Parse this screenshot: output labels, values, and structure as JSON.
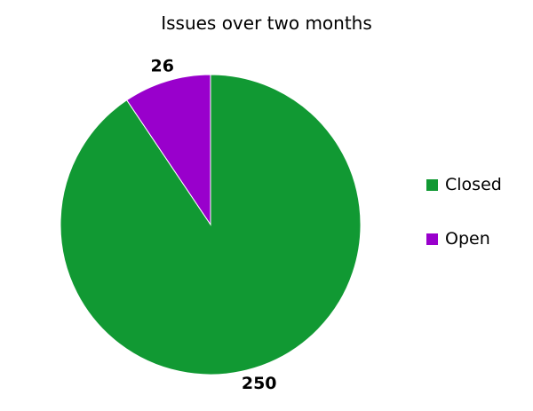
{
  "chart_data": {
    "type": "pie",
    "title": "Issues over two months",
    "categories": [
      "Closed",
      "Open"
    ],
    "values": [
      250,
      26
    ],
    "colors": [
      "#119933",
      "#9900cc"
    ],
    "data_labels": [
      "250",
      "26"
    ],
    "legend": {
      "placement": "right",
      "entries": [
        "Closed",
        "Open"
      ]
    },
    "start_angle": "top (12 o'clock)",
    "direction": "clockwise"
  }
}
